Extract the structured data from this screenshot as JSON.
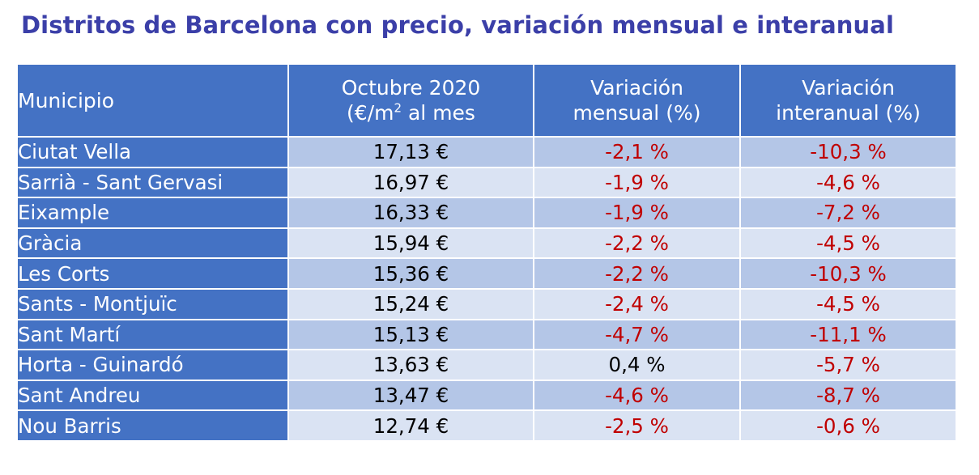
{
  "title": "Distritos de Barcelona con precio, variación mensual e interanual",
  "colors": {
    "title": "#3b3fa8",
    "header_bg": "#4472c4",
    "row_odd": "#b4c6e7",
    "row_even": "#dae3f3",
    "negative": "#c00000"
  },
  "table": {
    "headers": {
      "municipio": "Municipio",
      "precio_line1": "Octubre 2020",
      "precio_line2_pre": "(€/m",
      "precio_line2_sup": "2",
      "precio_line2_post": " al mes",
      "mensual_line1": "Variación",
      "mensual_line2": "mensual (%)",
      "interanual_line1": "Variación",
      "interanual_line2": "interanual (%)"
    },
    "rows": [
      {
        "municipio": "Ciutat Vella",
        "precio": "17,13 €",
        "mensual": "-2,1 %",
        "interanual": "-10,3 %"
      },
      {
        "municipio": "Sarrià - Sant Gervasi",
        "precio": "16,97 €",
        "mensual": "-1,9 %",
        "interanual": "-4,6 %"
      },
      {
        "municipio": "Eixample",
        "precio": "16,33 €",
        "mensual": "-1,9 %",
        "interanual": "-7,2 %"
      },
      {
        "municipio": "Gràcia",
        "precio": "15,94 €",
        "mensual": "-2,2 %",
        "interanual": "-4,5 %"
      },
      {
        "municipio": "Les Corts",
        "precio": "15,36 €",
        "mensual": "-2,2 %",
        "interanual": "-10,3 %"
      },
      {
        "municipio": "Sants - Montjuïc",
        "precio": "15,24 €",
        "mensual": "-2,4 %",
        "interanual": "-4,5 %"
      },
      {
        "municipio": "Sant Martí",
        "precio": "15,13 €",
        "mensual": "-4,7 %",
        "interanual": "-11,1 %"
      },
      {
        "municipio": "Horta - Guinardó",
        "precio": "13,63 €",
        "mensual": "0,4 %",
        "interanual": "-5,7 %"
      },
      {
        "municipio": "Sant Andreu",
        "precio": "13,47 €",
        "mensual": "-4,6 %",
        "interanual": "-8,7 %"
      },
      {
        "municipio": "Nou Barris",
        "precio": "12,74 €",
        "mensual": "-2,5 %",
        "interanual": "-0,6 %"
      }
    ]
  }
}
